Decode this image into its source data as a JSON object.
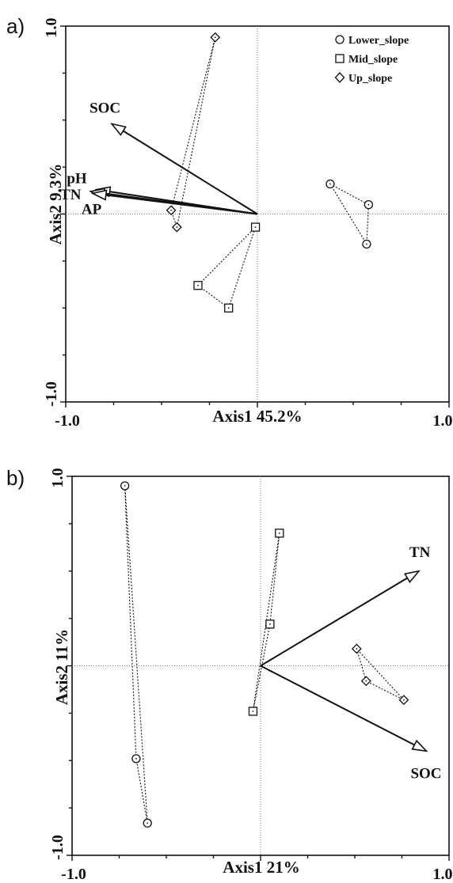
{
  "chart_data": [
    {
      "type": "scatter",
      "panel_label": "a)",
      "xlabel": "Axis1 45.2%",
      "ylabel": "Axis2 9.3%",
      "xlim": [
        -1.0,
        1.0
      ],
      "ylim": [
        -1.0,
        1.0
      ],
      "x_tick_labels": [
        "-1.0",
        "1.0"
      ],
      "y_tick_labels": [
        "1.0",
        "-1.0"
      ],
      "legend": {
        "placement": "top-right",
        "entries": [
          {
            "name": "Lower_slope",
            "marker": "circle"
          },
          {
            "name": "Mid_slope",
            "marker": "square"
          },
          {
            "name": "Up_slope",
            "marker": "diamond"
          }
        ]
      },
      "vectors": [
        {
          "label": "SOC",
          "x": -0.76,
          "y": 0.48
        },
        {
          "label": "pH",
          "x": -0.84,
          "y": 0.13
        },
        {
          "label": "TN",
          "x": -0.87,
          "y": 0.12
        },
        {
          "label": "AP",
          "x": -0.86,
          "y": 0.11
        }
      ],
      "series": [
        {
          "name": "Lower_slope",
          "marker": "circle",
          "points": [
            [
              0.38,
              0.16
            ],
            [
              0.58,
              0.05
            ],
            [
              0.57,
              -0.16
            ]
          ]
        },
        {
          "name": "Mid_slope",
          "marker": "square",
          "points": [
            [
              -0.01,
              -0.07
            ],
            [
              -0.31,
              -0.38
            ],
            [
              -0.15,
              -0.5
            ]
          ]
        },
        {
          "name": "Up_slope",
          "marker": "diamond",
          "points": [
            [
              -0.22,
              0.94
            ],
            [
              -0.45,
              0.02
            ],
            [
              -0.42,
              -0.07
            ]
          ]
        }
      ]
    },
    {
      "type": "scatter",
      "panel_label": "b)",
      "xlabel": "Axis1 21%",
      "ylabel": "Axis2 11%",
      "xlim": [
        -1.0,
        1.0
      ],
      "ylim": [
        -1.0,
        1.0
      ],
      "x_tick_labels": [
        "-1.0",
        "1.0"
      ],
      "y_tick_labels": [
        "1.0",
        "-1.0"
      ],
      "vectors": [
        {
          "label": "TN",
          "x": 0.84,
          "y": 0.5
        },
        {
          "label": "SOC",
          "x": 0.88,
          "y": -0.45
        }
      ],
      "series": [
        {
          "name": "Lower_slope",
          "marker": "circle",
          "points": [
            [
              -0.72,
              0.95
            ],
            [
              -0.66,
              -0.49
            ],
            [
              -0.6,
              -0.83
            ]
          ]
        },
        {
          "name": "Mid_slope",
          "marker": "square",
          "points": [
            [
              0.1,
              0.7
            ],
            [
              0.05,
              0.22
            ],
            [
              -0.04,
              -0.24
            ]
          ]
        },
        {
          "name": "Up_slope",
          "marker": "diamond",
          "points": [
            [
              0.51,
              0.09
            ],
            [
              0.56,
              -0.08
            ],
            [
              0.76,
              -0.18
            ]
          ]
        }
      ]
    }
  ]
}
